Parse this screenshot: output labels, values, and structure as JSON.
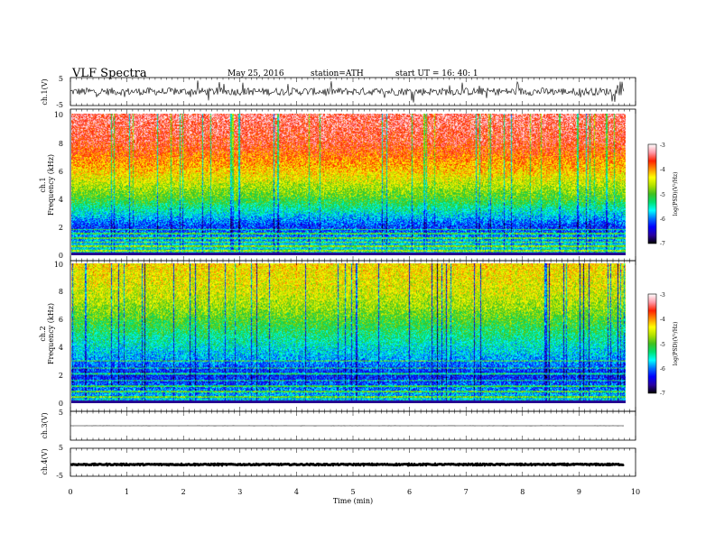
{
  "header": {
    "title": "VLF  Spectra",
    "date": "May 25, 2016",
    "station": "station=ATH",
    "start": "start  UT  =   16: 40: 1"
  },
  "colors": {
    "colormap": [
      "#000000",
      "#2a00a0",
      "#0000ff",
      "#0070ff",
      "#00ffff",
      "#00e070",
      "#40c020",
      "#b0e000",
      "#ffff00",
      "#ff9000",
      "#ff2000",
      "#ff9aa8",
      "#ffffff"
    ]
  },
  "chart_data": [
    {
      "type": "line",
      "name": "ch1-waveform",
      "ylabel": "ch.1(V)",
      "ylim": [
        -5,
        5
      ],
      "y_ticks": [
        "5",
        "-5"
      ],
      "x_range_min": [
        0,
        9.8
      ],
      "mean": 0.0,
      "peak_amplitude_approx": 2.5
    },
    {
      "type": "heatmap",
      "name": "ch1-spectrogram",
      "ylabel": "ch.1\nFrequency  (kHz)",
      "ylim": [
        0,
        10
      ],
      "y_ticks": [
        "0",
        "2",
        "4",
        "6",
        "8",
        "10"
      ],
      "x_range_min": [
        0,
        9.8
      ],
      "colorbar": {
        "label": "log(PSD)(V²/Hz)",
        "range": [
          -7,
          -3
        ],
        "ticks": [
          "-3",
          "-4",
          "-5",
          "-6",
          "-7"
        ]
      },
      "profile_khz_logpsd": [
        [
          0,
          -5.5
        ],
        [
          1,
          -5.8
        ],
        [
          2,
          -6.2
        ],
        [
          3,
          -5.6
        ],
        [
          4,
          -5.0
        ],
        [
          5,
          -4.6
        ],
        [
          6,
          -4.2
        ],
        [
          7,
          -3.9
        ],
        [
          8,
          -3.6
        ],
        [
          10,
          -3.4
        ]
      ],
      "lines_khz": [
        0.3,
        0.6,
        0.9,
        1.2,
        1.5,
        1.8
      ]
    },
    {
      "type": "heatmap",
      "name": "ch2-spectrogram",
      "ylabel": "ch.2\nFrequency  (kHz)",
      "ylim": [
        0,
        10
      ],
      "y_ticks": [
        "0",
        "2",
        "4",
        "6",
        "8",
        "10"
      ],
      "x_range_min": [
        0,
        9.8
      ],
      "colorbar": {
        "label": "log(PSD)(V²/Hz)",
        "range": [
          -7,
          -3
        ],
        "ticks": [
          "-3",
          "-4",
          "-5",
          "-6",
          "-7"
        ]
      },
      "profile_khz_logpsd": [
        [
          0,
          -5.6
        ],
        [
          1,
          -6.0
        ],
        [
          2,
          -6.3
        ],
        [
          3,
          -5.9
        ],
        [
          4,
          -5.6
        ],
        [
          5,
          -5.3
        ],
        [
          6,
          -5.0
        ],
        [
          7,
          -4.7
        ],
        [
          8,
          -4.5
        ],
        [
          10,
          -4.3
        ]
      ],
      "lines_khz": [
        0.4,
        0.8,
        1.2,
        1.6,
        2.1,
        2.5,
        3.0
      ]
    },
    {
      "type": "line",
      "name": "ch3-waveform",
      "ylabel": "ch.3(V)",
      "ylim": [
        -5,
        5
      ],
      "y_ticks": [
        "5"
      ],
      "x_range_min": [
        0,
        9.8
      ],
      "mean": 0.0,
      "peak_amplitude_approx": 0.02
    },
    {
      "type": "line",
      "name": "ch4-waveform",
      "ylabel": "ch.4(V)",
      "ylim": [
        -5,
        5
      ],
      "y_ticks": [
        "5",
        "-5"
      ],
      "x_range_min": [
        0,
        9.8
      ],
      "mean": -0.8,
      "peak_amplitude_approx": 0.2
    }
  ],
  "x_axis": {
    "xlabel": "Time  (min)",
    "xlim": [
      0,
      10
    ],
    "ticks": [
      "0",
      "1",
      "2",
      "3",
      "4",
      "5",
      "6",
      "7",
      "8",
      "9",
      "10"
    ]
  }
}
